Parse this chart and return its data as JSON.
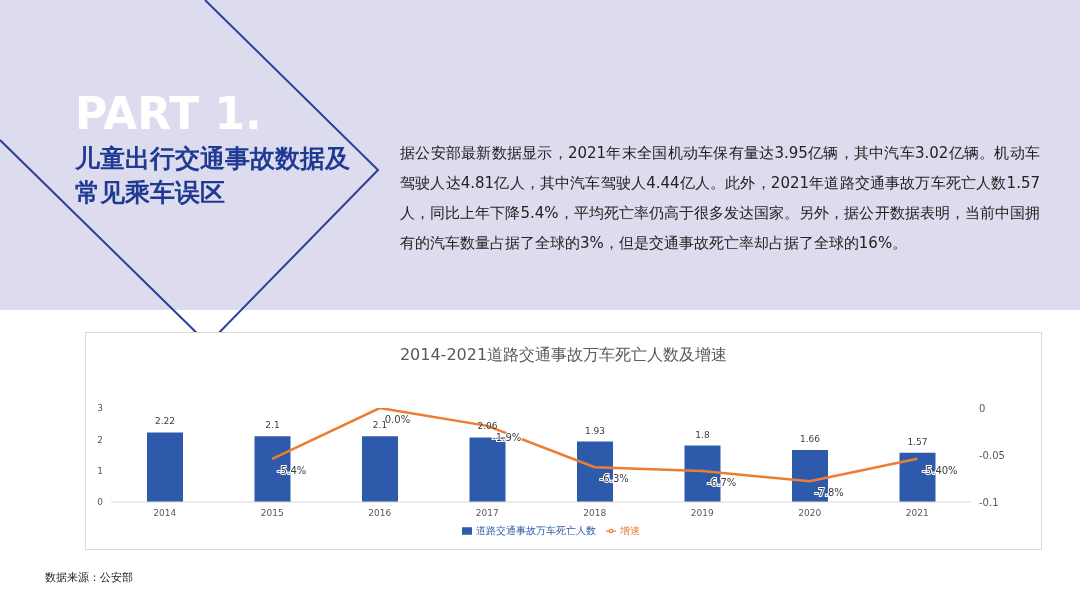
{
  "chart_data": {
    "type": "bar",
    "title": "2014-2021道路交通事故万车死亡人数及增速",
    "annotations": [
      "PART 1.",
      "儿童出行交通事故数据及常见乘车误区",
      "据公安部最新数据显示，2021年末全国机动车保有量达3.95亿辆，其中汽车3.02亿辆。机动车驾驶人达4.81亿人，其中汽车驾驶人4.44亿人。此外，2021年道路交通事故万车死亡人数1.57人，同比上年下降5.4%，平均死亡率仍高于很多发达国家。另外，据公开数据表明，当前中国拥有的汽车数量占据了全球的3%，但是交通事故死亡率却占据了全球的16%。",
      "数据来源：公安部"
    ],
    "categories": [
      "2014",
      "2015",
      "2016",
      "2017",
      "2018",
      "2019",
      "2020",
      "2021"
    ],
    "series": [
      {
        "name": "道路交通事故万车死亡人数",
        "color": "#2e5aac",
        "values": [
          2.22,
          2.1,
          2.1,
          2.06,
          1.93,
          1.8,
          1.66,
          1.57
        ],
        "value_labels": [
          "2.22",
          "2.1",
          "2.1",
          "2.06",
          "1.93",
          "1.8",
          "1.66",
          "1.57"
        ]
      },
      {
        "name": "增速",
        "type": "line",
        "axis": "y2",
        "color": "#ed7d31",
        "values": [
          null,
          -0.054,
          0.0,
          -0.019,
          -0.063,
          -0.067,
          -0.078,
          -0.054
        ],
        "value_labels": [
          null,
          "-5.4%",
          "0.0%",
          "-1.9%",
          "-6.3%",
          "-6.7%",
          "-7.8%",
          "-5.40%"
        ]
      }
    ],
    "ylim": [
      0,
      3
    ],
    "yticks": [
      0,
      1,
      2,
      3
    ],
    "y2lim": [
      -0.1,
      0
    ],
    "y2ticks": [
      0,
      -0.05,
      -0.1
    ],
    "grid": false,
    "legend": "bottom",
    "marker": "none"
  }
}
